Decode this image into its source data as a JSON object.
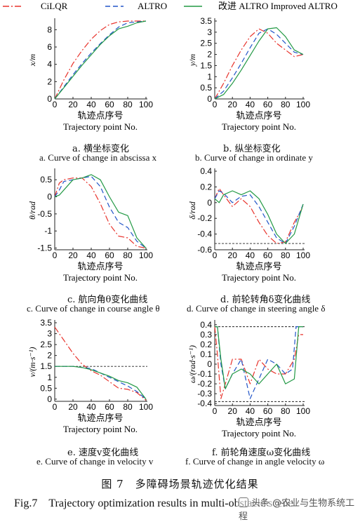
{
  "legend": {
    "items": [
      {
        "key": "cilqr",
        "label": "CiLQR",
        "color": "#e8322b",
        "dash": "9,3,2,3"
      },
      {
        "key": "altro",
        "label": "ALTRO",
        "color": "#2255c8",
        "dash": "7,4"
      },
      {
        "key": "improved",
        "label": "改进 ALTRO Improved ALTRO",
        "color": "#229944",
        "dash": ""
      }
    ]
  },
  "xaxis_cn": "轨迹点序号",
  "xaxis_en": "Trajectory point No.",
  "figure_title_cn": "图 7　多障碍场景轨迹优化结果",
  "figure_title_en": "Fig.7　Trajectory optimization results in multi-obstacle scene",
  "watermark": "头条 @农业与生物系统工程",
  "chart_data": [
    {
      "id": "a",
      "type": "line",
      "ylabel": "x/m",
      "xlim": [
        0,
        100
      ],
      "ylim": [
        0,
        9
      ],
      "xticks": [
        0,
        20,
        40,
        60,
        80,
        100
      ],
      "yticks": [
        0,
        2,
        4,
        6,
        8
      ],
      "caption_cn": "a. 横坐标变化",
      "caption_en": "a. Curve of change in abscissa x",
      "series": [
        {
          "name": "CiLQR",
          "x": [
            0,
            10,
            20,
            30,
            40,
            50,
            60,
            70,
            80,
            90,
            100
          ],
          "y": [
            0,
            2.2,
            4.1,
            5.6,
            6.9,
            7.9,
            8.6,
            8.9,
            9,
            9,
            9
          ]
        },
        {
          "name": "ALTRO",
          "x": [
            0,
            10,
            20,
            30,
            40,
            50,
            60,
            70,
            80,
            90,
            100
          ],
          "y": [
            0,
            1.4,
            2.8,
            4.1,
            5.3,
            6.4,
            7.4,
            8.3,
            8.8,
            8.9,
            9
          ]
        },
        {
          "name": "Improved ALTRO",
          "x": [
            0,
            10,
            20,
            30,
            40,
            50,
            60,
            70,
            80,
            90,
            100
          ],
          "y": [
            0,
            1.3,
            2.6,
            3.9,
            5.1,
            6.3,
            7.3,
            8.1,
            8.4,
            8.8,
            9
          ]
        }
      ]
    },
    {
      "id": "b",
      "type": "line",
      "ylabel": "y/m",
      "xlim": [
        0,
        100
      ],
      "ylim": [
        0,
        3.5
      ],
      "xticks": [
        0,
        20,
        40,
        60,
        80,
        100
      ],
      "yticks": [
        0,
        0.5,
        1,
        1.5,
        2,
        2.5,
        3,
        3.5
      ],
      "caption_cn": "b. 纵坐标变化",
      "caption_en": "b. Curve of change in ordinate y",
      "series": [
        {
          "name": "CiLQR",
          "x": [
            0,
            10,
            20,
            30,
            40,
            50,
            60,
            70,
            80,
            90,
            100
          ],
          "y": [
            0,
            0.7,
            1.5,
            2.2,
            2.8,
            3.15,
            2.95,
            2.5,
            2.2,
            1.9,
            2.0
          ]
        },
        {
          "name": "ALTRO",
          "x": [
            0,
            10,
            20,
            30,
            40,
            50,
            60,
            70,
            80,
            90,
            100
          ],
          "y": [
            0,
            0.35,
            0.95,
            1.6,
            2.3,
            2.95,
            3.15,
            2.9,
            2.5,
            2.1,
            2.0
          ]
        },
        {
          "name": "Improved ALTRO",
          "x": [
            0,
            10,
            20,
            30,
            40,
            50,
            60,
            70,
            80,
            90,
            100
          ],
          "y": [
            0,
            0.2,
            0.7,
            1.3,
            1.95,
            2.6,
            3.15,
            3.2,
            2.8,
            2.2,
            2.0
          ]
        }
      ]
    },
    {
      "id": "c",
      "type": "line",
      "ylabel": "θ/rad",
      "xlim": [
        0,
        100
      ],
      "ylim": [
        -1.55,
        0.75
      ],
      "xticks": [
        0,
        20,
        40,
        60,
        80,
        100
      ],
      "yticks": [
        -1.5,
        -1,
        -0.5,
        0,
        0.5
      ],
      "caption_cn": "c. 航向角θ变化曲线",
      "caption_en": "c. Curve of change in course angle θ",
      "series": [
        {
          "name": "CiLQR",
          "x": [
            0,
            5,
            10,
            20,
            30,
            40,
            50,
            60,
            70,
            80,
            90,
            100
          ],
          "y": [
            0,
            0.4,
            0.5,
            0.55,
            0.55,
            0.3,
            -0.2,
            -0.8,
            -1.15,
            -1.2,
            -1.45,
            -1.5
          ]
        },
        {
          "name": "ALTRO",
          "x": [
            0,
            5,
            10,
            20,
            30,
            40,
            50,
            60,
            70,
            80,
            90,
            100
          ],
          "y": [
            0,
            0.2,
            0.45,
            0.5,
            0.55,
            0.6,
            0.3,
            -0.3,
            -0.75,
            -0.9,
            -1.3,
            -1.5
          ]
        },
        {
          "name": "Improved ALTRO",
          "x": [
            0,
            5,
            10,
            20,
            30,
            40,
            50,
            60,
            70,
            80,
            90,
            100
          ],
          "y": [
            0,
            0.05,
            0.2,
            0.5,
            0.55,
            0.65,
            0.5,
            0,
            -0.45,
            -0.55,
            -1.2,
            -1.5
          ]
        }
      ]
    },
    {
      "id": "d",
      "type": "line",
      "ylabel": "δ/rad",
      "xlim": [
        0,
        100
      ],
      "ylim": [
        -0.6,
        0.4
      ],
      "xticks": [
        0,
        20,
        40,
        60,
        80,
        100
      ],
      "yticks": [
        -0.6,
        -0.4,
        -0.2,
        0,
        0.2,
        0.4
      ],
      "reference_lines": [
        -0.52
      ],
      "caption_cn": "d. 前轮转角δ变化曲线",
      "caption_en": "d. Curve of change in steering angle δ",
      "series": [
        {
          "name": "CiLQR",
          "x": [
            0,
            5,
            10,
            20,
            30,
            40,
            50,
            60,
            70,
            80,
            90,
            100
          ],
          "y": [
            0.05,
            0.18,
            0.1,
            -0.05,
            0.05,
            -0.05,
            -0.25,
            -0.42,
            -0.52,
            -0.5,
            -0.25,
            -0.05
          ]
        },
        {
          "name": "ALTRO",
          "x": [
            0,
            5,
            10,
            20,
            30,
            40,
            50,
            60,
            70,
            80,
            90,
            100
          ],
          "y": [
            0.05,
            0.15,
            0.12,
            0,
            0.08,
            0.1,
            -0.05,
            -0.25,
            -0.45,
            -0.52,
            -0.3,
            -0.02
          ]
        },
        {
          "name": "Improved ALTRO",
          "x": [
            0,
            5,
            10,
            20,
            30,
            40,
            50,
            60,
            70,
            80,
            90,
            100
          ],
          "y": [
            0.05,
            0,
            0.1,
            0.15,
            0.1,
            0.15,
            0.05,
            -0.15,
            -0.4,
            -0.52,
            -0.4,
            -0.02
          ]
        }
      ]
    },
    {
      "id": "e",
      "type": "line",
      "ylabel": "v/(m·s⁻¹)",
      "xlim": [
        0,
        100
      ],
      "ylim": [
        -0.1,
        3.5
      ],
      "xticks": [
        0,
        20,
        40,
        60,
        80,
        100
      ],
      "yticks": [
        0,
        0.5,
        1,
        1.5,
        2,
        2.5,
        3,
        3.5
      ],
      "reference_lines": [
        1.5
      ],
      "caption_cn": "e. 速度v变化曲线",
      "caption_en": "e. Curve of change in velocity v",
      "series": [
        {
          "name": "CiLQR",
          "x": [
            0,
            10,
            20,
            30,
            40,
            50,
            60,
            70,
            80,
            90,
            100
          ],
          "y": [
            3.3,
            2.7,
            2.1,
            1.6,
            1.3,
            1.1,
            0.8,
            0.5,
            0.45,
            0.3,
            -0.05
          ]
        },
        {
          "name": "ALTRO",
          "x": [
            0,
            10,
            20,
            30,
            40,
            50,
            60,
            70,
            80,
            90,
            100
          ],
          "y": [
            1.5,
            1.5,
            1.5,
            1.45,
            1.4,
            1.2,
            1.0,
            0.8,
            0.6,
            0.35,
            0
          ]
        },
        {
          "name": "Improved ALTRO",
          "x": [
            0,
            10,
            20,
            30,
            40,
            50,
            60,
            70,
            80,
            90,
            100
          ],
          "y": [
            1.5,
            1.5,
            1.5,
            1.45,
            1.35,
            1.2,
            1.05,
            0.85,
            0.75,
            0.55,
            0
          ]
        }
      ]
    },
    {
      "id": "f",
      "type": "line",
      "ylabel": "ω/(rad·s⁻¹)",
      "xlim": [
        0,
        100
      ],
      "ylim": [
        -0.42,
        0.42
      ],
      "xticks": [
        0,
        20,
        40,
        60,
        80,
        100
      ],
      "yticks": [
        -0.4,
        -0.3,
        -0.2,
        -0.1,
        0,
        0.1,
        0.2,
        0.3,
        0.4
      ],
      "reference_lines": [
        0.38,
        -0.38
      ],
      "caption_cn": "f. 前轮角速度ω变化曲线",
      "caption_en": "f. Curve of change in angle velocity ω",
      "series": [
        {
          "name": "CiLQR",
          "x": [
            0,
            3,
            7,
            12,
            20,
            30,
            40,
            50,
            60,
            70,
            80,
            90,
            95,
            100
          ],
          "y": [
            0.38,
            0.1,
            -0.35,
            -0.2,
            0.05,
            0.05,
            -0.2,
            0.05,
            -0.05,
            -0.1,
            -0.1,
            0.05,
            0.3,
            0.3
          ]
        },
        {
          "name": "ALTRO",
          "x": [
            0,
            3,
            7,
            12,
            20,
            30,
            40,
            50,
            60,
            70,
            80,
            88,
            92,
            100
          ],
          "y": [
            0.38,
            0.38,
            0,
            -0.25,
            -0.1,
            0.05,
            -0.35,
            -0.15,
            0.05,
            0,
            -0.1,
            -0.05,
            0.38,
            0.38
          ]
        },
        {
          "name": "Improved ALTRO",
          "x": [
            0,
            3,
            7,
            12,
            20,
            30,
            40,
            50,
            60,
            70,
            80,
            90,
            95,
            100
          ],
          "y": [
            0.38,
            0.38,
            0.05,
            -0.25,
            -0.1,
            -0.05,
            -0.1,
            -0.2,
            -0.1,
            0,
            -0.2,
            -0.15,
            0.38,
            0.38
          ]
        }
      ]
    }
  ]
}
